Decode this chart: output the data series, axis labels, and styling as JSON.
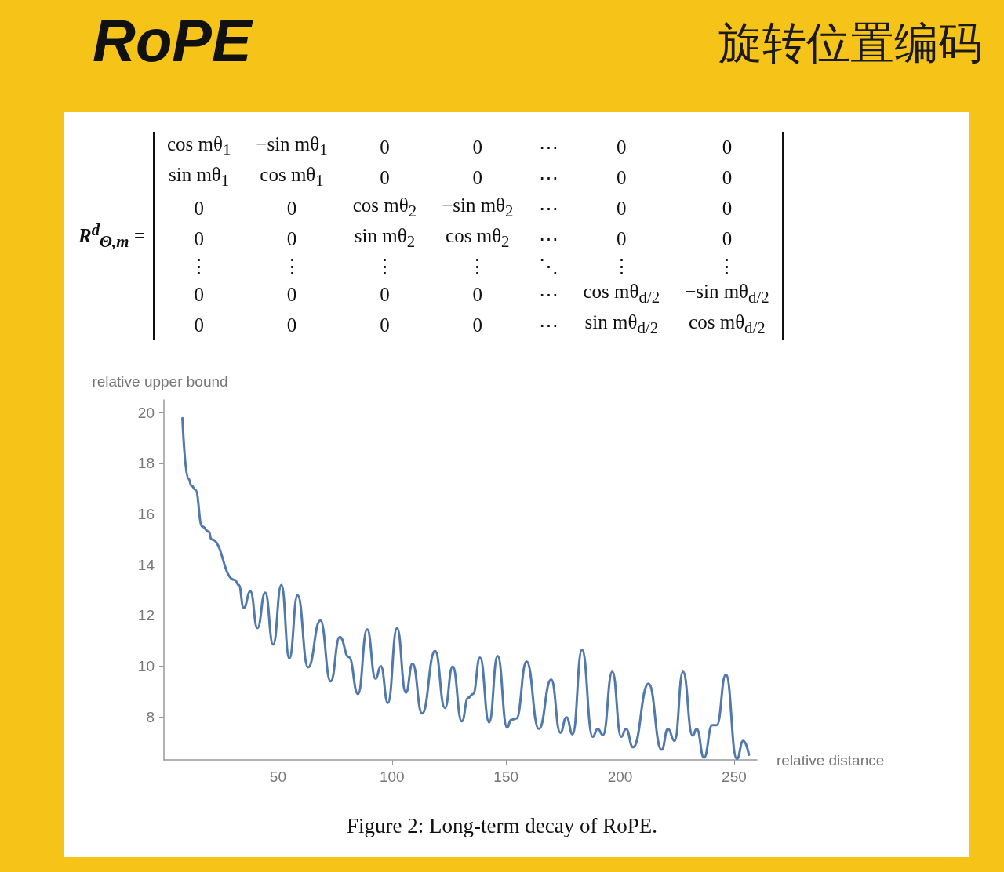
{
  "chart_data": {
    "type": "line",
    "title": "RoPE",
    "subtitle": "旋转位置编码",
    "xlabel": "relative distance",
    "ylabel": "relative upper bound",
    "annotations": [
      "Figure 2: Long-term decay of RoPE.",
      "R$^{d}$$_{Θ,m}$ =",
      "cos mθ$_{1}$\t−sin mθ$_{1}$\t0\t0\t⋯\t0\t0",
      "sin mθ$_{1}$\tcos mθ$_{1}$\t0\t0\t⋯\t0\t0",
      "0\t0\tcos mθ$_{2}$\t−sin mθ$_{2}$\t⋯\t0\t0",
      "0\t0\tsin mθ$_{2}$\tcos mθ$_{2}$\t⋯\t0\t0",
      "⋮\t⋮\t⋮\t⋮\t⋱\t⋮\t⋮",
      "0\t0\t0\t0\t⋯\tcos mθ$_{d/2}$\t−sin mθ$_{d/2}$",
      "0\t0\t0\t0\t⋯\tsin mθ$_{d/2}$\tcos mθ$_{d/2}$"
    ],
    "x": [
      8.1,
      10.6,
      12.3,
      13.8,
      16.8,
      19.7,
      20.8,
      31,
      32.8,
      35,
      37.9,
      41,
      44.4,
      47.9,
      51.5,
      55,
      58.6,
      63.2,
      68.6,
      73.1,
      77.1,
      81.1,
      85.1,
      89.1,
      92.8,
      95.1,
      98.2,
      102.2,
      106.1,
      109,
      113.2,
      118.9,
      123.2,
      126.6,
      130.6,
      133.4,
      135.5,
      138.6,
      142.6,
      146.3,
      150.5,
      152.2,
      154.5,
      159,
      164.4,
      169.8,
      173.8,
      176.5,
      179.2,
      183.3,
      188,
      190.2,
      192.5,
      196.6,
      200.5,
      202.6,
      205.7,
      212.5,
      218.2,
      221,
      223.9,
      227.6,
      231.8,
      233.6,
      236.8,
      240.4,
      242.4,
      246.4,
      251.2,
      254,
      256.5
    ],
    "series": [
      {
        "color": "#5279ab",
        "values": [
          19.78,
          17.4,
          17.1,
          16.95,
          15.5,
          15.3,
          15.0,
          13.4,
          13.2,
          12.3,
          12.95,
          11.5,
          12.9,
          10.85,
          13.2,
          10.3,
          12.8,
          9.95,
          11.8,
          9.4,
          11.15,
          10.35,
          8.9,
          11.45,
          9.5,
          10.0,
          8.55,
          11.5,
          8.95,
          10.1,
          8.13,
          10.6,
          8.35,
          9.98,
          7.82,
          8.75,
          8.9,
          10.34,
          7.78,
          10.4,
          7.57,
          7.88,
          7.93,
          10.18,
          7.52,
          9.47,
          7.37,
          7.98,
          7.31,
          10.65,
          7.21,
          7.52,
          7.28,
          9.78,
          7.21,
          7.52,
          6.8,
          9.31,
          6.7,
          7.52,
          7.05,
          9.78,
          7.26,
          7.52,
          6.39,
          7.67,
          7.67,
          9.67,
          6.34,
          7.05,
          6.5
        ]
      }
    ],
    "xlim": [
      0,
      260
    ],
    "xticks": [
      50,
      100,
      150,
      200,
      250
    ],
    "ylim": [
      6.3,
      20.5
    ],
    "yticks": [
      8,
      10,
      12,
      14,
      16,
      18,
      20
    ],
    "grid": false,
    "marker": "none",
    "line_style": "solid"
  }
}
